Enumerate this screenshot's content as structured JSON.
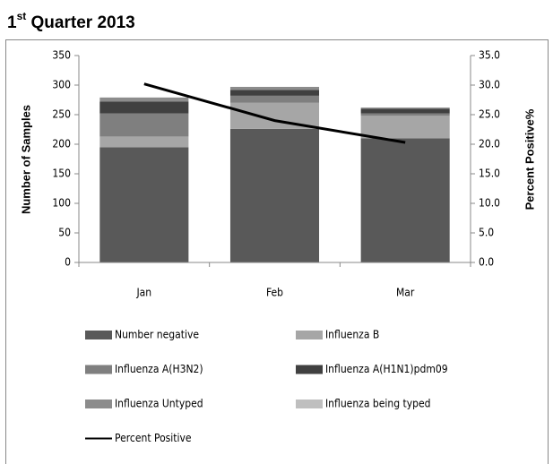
{
  "chart_data": {
    "type": "bar",
    "title": [
      "1",
      "st",
      " Quarter 2013"
    ],
    "categories": [
      "Jan",
      "Feb",
      "Mar"
    ],
    "y_label": "Number of Samples",
    "y2_label": "Percent Positive%",
    "ylim": [
      0,
      350
    ],
    "yticks": [
      0,
      50,
      100,
      150,
      200,
      250,
      300,
      350
    ],
    "y2lim": [
      0,
      35
    ],
    "y2ticks": [
      {
        "value": 0,
        "label": "0.0"
      },
      {
        "value": 5,
        "label": "5.0"
      },
      {
        "value": 10,
        "label": "10.0"
      },
      {
        "value": 15,
        "label": "15.0"
      },
      {
        "value": 20,
        "label": "20.0"
      },
      {
        "value": 25,
        "label": "25.0"
      },
      {
        "value": 30,
        "label": "30.0"
      },
      {
        "value": 35,
        "label": "35.0"
      }
    ],
    "stacked": true,
    "series": [
      {
        "name": "Number negative",
        "color": "#595959",
        "values": [
          195,
          226,
          210
        ]
      },
      {
        "name": "Influenza B",
        "color": "#a6a6a6",
        "values": [
          18,
          44,
          38
        ]
      },
      {
        "name": "Influenza A(H3N2)",
        "color": "#7f7f7f",
        "values": [
          39,
          12,
          4
        ]
      },
      {
        "name": "Influenza A(H1N1)pdm09",
        "color": "#404040",
        "values": [
          20,
          10,
          8
        ]
      },
      {
        "name": "Influenza Untyped",
        "color": "#8c8c8c",
        "values": [
          7,
          5,
          2
        ]
      },
      {
        "name": "Influenza being typed",
        "color": "#bfbfbf",
        "values": [
          0,
          0,
          0
        ]
      },
      {
        "name": "Percent Positive",
        "color": "#000000",
        "type": "line",
        "axis": "y2",
        "values": [
          30.2,
          24.0,
          20.3
        ]
      }
    ]
  }
}
